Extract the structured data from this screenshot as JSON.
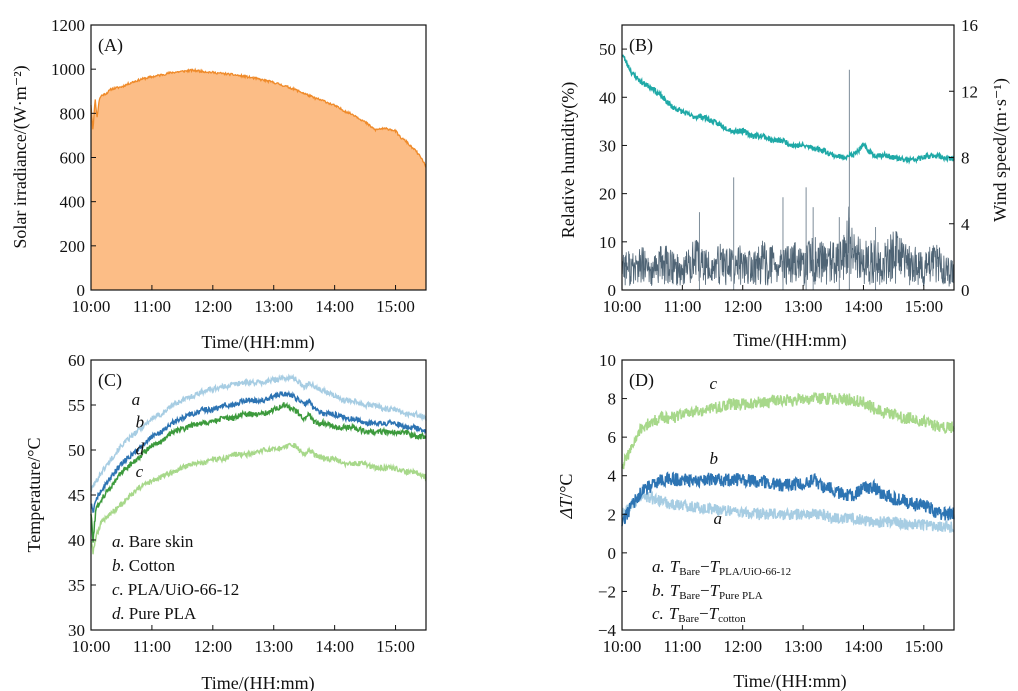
{
  "colors": {
    "irradiance_fill": "#fcbd86",
    "irradiance_line": "#ef8a29",
    "humidity": "#1fa9a7",
    "wind": "#4f6475",
    "bare_skin": "#a7cde3",
    "cotton": "#2d74b3",
    "pla_uio": "#a7d88a",
    "pure_pla": "#3c9a3c"
  },
  "chart_data": [
    {
      "type": "area",
      "panel": "(A)",
      "xlabel": "Time/(HH:mm)",
      "ylabel": "Solar irradiance/(W·m⁻²)",
      "xlim": [
        600,
        930
      ],
      "xticks": [
        600,
        660,
        720,
        780,
        840,
        900
      ],
      "xtick_labels": [
        "10:00",
        "11:00",
        "12:00",
        "13:00",
        "14:00",
        "15:00"
      ],
      "ylim": [
        0,
        1200
      ],
      "yticks": [
        0,
        200,
        400,
        600,
        800,
        1000,
        1200
      ],
      "series": [
        {
          "x": [
            600,
            602,
            604,
            606,
            608,
            610,
            615,
            620,
            630,
            640,
            650,
            660,
            670,
            680,
            690,
            700,
            710,
            720,
            730,
            740,
            750,
            760,
            770,
            780,
            790,
            800,
            810,
            820,
            830,
            840,
            850,
            860,
            870,
            880,
            885,
            890,
            895,
            900,
            905,
            910,
            915,
            920,
            925,
            930
          ],
          "y": [
            840,
            720,
            870,
            780,
            860,
            880,
            890,
            910,
            920,
            940,
            955,
            965,
            975,
            985,
            990,
            995,
            990,
            985,
            980,
            975,
            968,
            960,
            950,
            940,
            925,
            910,
            890,
            870,
            855,
            835,
            810,
            790,
            760,
            725,
            730,
            730,
            728,
            720,
            690,
            675,
            650,
            630,
            600,
            560
          ]
        }
      ]
    },
    {
      "type": "line",
      "panel": "(B)",
      "xlabel": "Time/(HH:mm)",
      "ylabel": "Relative humidity(%)",
      "y2label": "Wind speed/(m·s⁻¹)",
      "xlim": [
        600,
        930
      ],
      "xticks": [
        600,
        660,
        720,
        780,
        840,
        900
      ],
      "xtick_labels": [
        "10:00",
        "11:00",
        "12:00",
        "13:00",
        "14:00",
        "15:00"
      ],
      "ylim": [
        0,
        55
      ],
      "yticks": [
        0,
        10,
        20,
        30,
        40,
        50
      ],
      "y2lim": [
        0,
        16
      ],
      "y2ticks": [
        0,
        4,
        8,
        12,
        16
      ],
      "series": [
        {
          "name": "humidity",
          "axis": "left",
          "x": [
            600,
            605,
            610,
            620,
            630,
            640,
            650,
            660,
            670,
            680,
            690,
            700,
            710,
            720,
            730,
            740,
            750,
            760,
            770,
            780,
            790,
            800,
            810,
            820,
            825,
            830,
            835,
            840,
            845,
            850,
            860,
            870,
            880,
            890,
            900,
            910,
            920,
            930
          ],
          "y": [
            49,
            47,
            45,
            43,
            42,
            40,
            38,
            37,
            36,
            36,
            35,
            34,
            33,
            33,
            32,
            32,
            31,
            31,
            30,
            30,
            29.5,
            29,
            28,
            27.5,
            28,
            28,
            29,
            30,
            29,
            28,
            28,
            27.5,
            27,
            27,
            27.5,
            28,
            27.5,
            27
          ]
        },
        {
          "name": "wind speed",
          "axis": "right",
          "x": [
            600,
            610,
            620,
            630,
            640,
            650,
            660,
            670,
            680,
            690,
            700,
            710,
            720,
            730,
            740,
            750,
            760,
            770,
            780,
            790,
            800,
            810,
            820,
            825,
            830,
            840,
            850,
            860,
            870,
            880,
            890,
            900,
            910,
            920,
            930
          ],
          "y": [
            2.0,
            1.5,
            1.8,
            1.2,
            2.0,
            1.6,
            1.4,
            2.2,
            1.8,
            1.5,
            2.0,
            1.7,
            1.9,
            1.5,
            2.0,
            1.8,
            1.6,
            2.0,
            1.7,
            2.2,
            1.9,
            2.0,
            2.1,
            3.5,
            2.4,
            2.0,
            2.2,
            1.8,
            2.5,
            2.0,
            1.8,
            1.5,
            2.0,
            1.5,
            1.2
          ],
          "peaks": [
            {
              "x": 677,
              "y": 4.7
            },
            {
              "x": 711,
              "y": 6.8
            },
            {
              "x": 760,
              "y": 5.6
            },
            {
              "x": 783,
              "y": 6.2
            },
            {
              "x": 790,
              "y": 5.0
            },
            {
              "x": 816,
              "y": 4.4
            },
            {
              "x": 826,
              "y": 13.3
            },
            {
              "x": 852,
              "y": 3.8
            }
          ]
        }
      ]
    },
    {
      "type": "line",
      "panel": "(C)",
      "xlabel": "Time/(HH:mm)",
      "ylabel": "Temperature/°C",
      "xlim": [
        600,
        930
      ],
      "xticks": [
        600,
        660,
        720,
        780,
        840,
        900
      ],
      "xtick_labels": [
        "10:00",
        "11:00",
        "12:00",
        "13:00",
        "14:00",
        "15:00"
      ],
      "ylim": [
        30,
        60
      ],
      "yticks": [
        30,
        35,
        40,
        45,
        50,
        55,
        60
      ],
      "legend": [
        {
          "letter": "a.",
          "text": "Bare skin"
        },
        {
          "letter": "b.",
          "text": "Cotton"
        },
        {
          "letter": "c.",
          "text": "PLA/UiO-66-12"
        },
        {
          "letter": "d.",
          "text": "Pure PLA"
        }
      ],
      "series": [
        {
          "name": "a",
          "x": [
            600,
            602,
            605,
            610,
            620,
            630,
            640,
            650,
            660,
            670,
            680,
            690,
            700,
            710,
            720,
            730,
            740,
            750,
            760,
            770,
            780,
            790,
            800,
            810,
            815,
            820,
            830,
            840,
            850,
            860,
            870,
            880,
            890,
            900,
            910,
            920,
            930
          ],
          "y": [
            45.5,
            46,
            46.5,
            47.5,
            49,
            50.5,
            51.5,
            52.5,
            53.5,
            54,
            55,
            55.5,
            56,
            56.5,
            56.8,
            57,
            57.3,
            57.5,
            57.5,
            57.5,
            57.8,
            58,
            58,
            57,
            57.5,
            57,
            56.5,
            56,
            55.5,
            55.5,
            55,
            55,
            54.5,
            54.5,
            54,
            54,
            53.5
          ]
        },
        {
          "name": "b",
          "x": [
            600,
            602,
            605,
            610,
            620,
            630,
            640,
            650,
            660,
            670,
            680,
            690,
            700,
            710,
            720,
            730,
            740,
            750,
            760,
            770,
            780,
            790,
            800,
            810,
            815,
            820,
            830,
            840,
            850,
            860,
            870,
            880,
            890,
            900,
            910,
            920,
            930
          ],
          "y": [
            44,
            43,
            44.5,
            45.5,
            47,
            48.5,
            49.5,
            50.5,
            51.5,
            52,
            53,
            53.5,
            54,
            54.5,
            54.5,
            55,
            55,
            55.5,
            55.5,
            55.5,
            56,
            56.3,
            56,
            55,
            55.5,
            54.5,
            54,
            54,
            53.5,
            53.5,
            53,
            53,
            53,
            53,
            52.5,
            52.5,
            52
          ]
        },
        {
          "name": "c",
          "x": [
            600,
            602,
            604,
            607,
            610,
            620,
            630,
            640,
            650,
            660,
            670,
            680,
            690,
            700,
            710,
            720,
            730,
            740,
            750,
            760,
            770,
            780,
            790,
            800,
            810,
            815,
            820,
            830,
            840,
            850,
            860,
            870,
            880,
            890,
            900,
            910,
            920,
            930
          ],
          "y": [
            40,
            38.5,
            40,
            41,
            42,
            43,
            44,
            45,
            46,
            46.5,
            47,
            47.5,
            48,
            48.5,
            48.5,
            49,
            49,
            49.5,
            49.5,
            49.5,
            50,
            50,
            50.3,
            50.5,
            49.5,
            50,
            49.5,
            49,
            49,
            48.5,
            48.5,
            48.5,
            48,
            48,
            48,
            47.5,
            47.5,
            47
          ]
        },
        {
          "name": "d",
          "x": [
            600,
            602,
            605,
            610,
            620,
            630,
            640,
            650,
            660,
            670,
            680,
            690,
            700,
            710,
            720,
            730,
            740,
            750,
            760,
            770,
            780,
            790,
            800,
            810,
            815,
            820,
            830,
            840,
            850,
            860,
            870,
            880,
            890,
            900,
            910,
            920,
            930
          ],
          "y": [
            43,
            40,
            43.5,
            44.5,
            46,
            47.5,
            48.5,
            49.5,
            50.5,
            51,
            52,
            52.3,
            52.8,
            53,
            53.2,
            53.5,
            53.5,
            54,
            54,
            54,
            54.5,
            55,
            54.5,
            53.5,
            54,
            53,
            53,
            52.5,
            52.5,
            52.5,
            52,
            52,
            52,
            52,
            52,
            51.5,
            51.5
          ]
        }
      ],
      "curve_labels": [
        {
          "text": "a",
          "x": 640,
          "y": 55
        },
        {
          "text": "b",
          "x": 644,
          "y": 52.5
        },
        {
          "text": "d",
          "x": 644,
          "y": 49.5
        },
        {
          "text": "c",
          "x": 644,
          "y": 47
        }
      ]
    },
    {
      "type": "line",
      "panel": "(D)",
      "xlabel": "Time/(HH:mm)",
      "ylabel": "ΔT/°C",
      "xlim": [
        600,
        930
      ],
      "xticks": [
        600,
        660,
        720,
        780,
        840,
        900
      ],
      "xtick_labels": [
        "10:00",
        "11:00",
        "12:00",
        "13:00",
        "14:00",
        "15:00"
      ],
      "ylim": [
        -4,
        10
      ],
      "yticks": [
        -4,
        -2,
        0,
        2,
        4,
        6,
        8,
        10
      ],
      "legend": [
        {
          "letter": "a.",
          "minuend": "T",
          "minuend_sub": "Bare",
          "subtrahend": "T",
          "subtrahend_sub": "PLA/UiO-66-12"
        },
        {
          "letter": "b.",
          "minuend": "T",
          "minuend_sub": "Bare",
          "subtrahend": "T",
          "subtrahend_sub": "Pure PLA"
        },
        {
          "letter": "c.",
          "minuend": "T",
          "minuend_sub": "Bare",
          "subtrahend": "T",
          "subtrahend_sub": "cotton"
        }
      ],
      "series": [
        {
          "name": "a",
          "x": [
            600,
            610,
            620,
            630,
            640,
            650,
            660,
            670,
            680,
            690,
            700,
            710,
            720,
            730,
            740,
            750,
            760,
            770,
            780,
            790,
            800,
            810,
            820,
            830,
            840,
            850,
            860,
            870,
            880,
            890,
            900,
            910,
            920,
            930
          ],
          "y": [
            2.0,
            2.5,
            3.0,
            2.8,
            2.7,
            2.5,
            2.5,
            2.4,
            2.3,
            2.3,
            2.2,
            2.2,
            2.1,
            2.0,
            2.0,
            2.0,
            2.0,
            2.0,
            2.0,
            2.0,
            2.0,
            1.8,
            1.8,
            1.8,
            1.7,
            1.6,
            1.6,
            1.6,
            1.5,
            1.5,
            1.5,
            1.4,
            1.4,
            1.3
          ]
        },
        {
          "name": "b",
          "x": [
            600,
            610,
            620,
            630,
            640,
            650,
            660,
            670,
            680,
            690,
            700,
            710,
            720,
            730,
            740,
            750,
            760,
            770,
            780,
            790,
            800,
            810,
            820,
            830,
            840,
            850,
            860,
            870,
            880,
            890,
            900,
            910,
            920,
            930
          ],
          "y": [
            1.5,
            2.5,
            3.2,
            3.5,
            3.8,
            3.8,
            3.8,
            3.7,
            3.8,
            3.8,
            3.8,
            3.8,
            3.8,
            3.7,
            3.7,
            3.6,
            3.5,
            3.5,
            3.6,
            3.8,
            3.4,
            3.3,
            3.0,
            3.0,
            3.4,
            3.4,
            3.0,
            2.8,
            2.7,
            2.5,
            2.5,
            2.2,
            2.0,
            2.0
          ]
        },
        {
          "name": "c",
          "x": [
            600,
            610,
            620,
            630,
            640,
            650,
            660,
            670,
            680,
            690,
            700,
            710,
            720,
            730,
            740,
            750,
            760,
            770,
            780,
            790,
            800,
            810,
            820,
            830,
            840,
            850,
            860,
            870,
            880,
            890,
            900,
            910,
            920,
            930
          ],
          "y": [
            4.5,
            5.5,
            6.5,
            6.8,
            7.0,
            7.0,
            7.2,
            7.3,
            7.4,
            7.5,
            7.6,
            7.7,
            7.7,
            7.8,
            7.8,
            7.9,
            7.9,
            7.9,
            8.0,
            8.0,
            8.0,
            8.0,
            8.0,
            7.9,
            7.8,
            7.5,
            7.3,
            7.2,
            7.0,
            7.0,
            6.8,
            6.6,
            6.5,
            6.5
          ]
        }
      ],
      "curve_labels": [
        {
          "text": "c",
          "x": 687,
          "y": 8.5
        },
        {
          "text": "b",
          "x": 687,
          "y": 4.6
        },
        {
          "text": "a",
          "x": 691,
          "y": 1.5
        }
      ]
    }
  ]
}
